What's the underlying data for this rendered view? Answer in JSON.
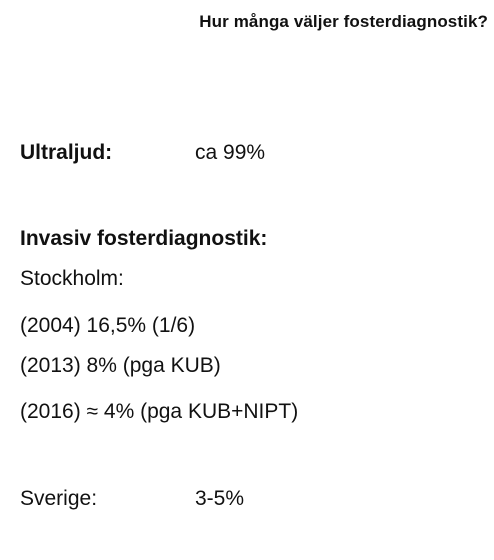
{
  "title": "Hur många väljer fosterdiagnostik?",
  "ultraljud": {
    "label": "Ultraljud:",
    "value": "ca 99%"
  },
  "invasiv": {
    "heading": "Invasiv fosterdiagnostik:",
    "region": "Stockholm:",
    "rows": [
      "(2004) 16,5% (1/6)",
      "(2013) 8% (pga KUB)",
      "(2016) ≈ 4% (pga KUB+NIPT)"
    ]
  },
  "sverige": {
    "label": "Sverige:",
    "value": "3-5%"
  }
}
